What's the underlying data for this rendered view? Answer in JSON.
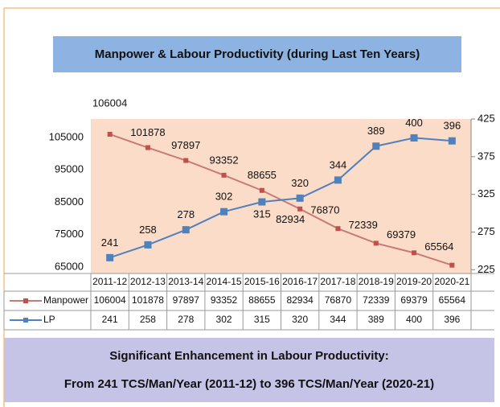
{
  "chart_data": {
    "type": "line",
    "title": "Manpower & Labour Productivity (during Last Ten Years)",
    "categories": [
      "2011-12",
      "2012-13",
      "2013-14",
      "2014-15",
      "2015-16",
      "2016-17",
      "2017-18",
      "2018-19",
      "2019-20",
      "2020-21"
    ],
    "series": [
      {
        "name": "Manpower",
        "color": "#c0504d",
        "axis": "y",
        "values": [
          106004,
          101878,
          97897,
          93352,
          88655,
          82934,
          76870,
          72339,
          69379,
          65564
        ]
      },
      {
        "name": "LP",
        "color": "#4f81bd",
        "axis": "y2",
        "values": [
          241,
          258,
          278,
          302,
          315,
          320,
          344,
          389,
          400,
          396
        ]
      }
    ],
    "ylim": [
      63000,
      110700
    ],
    "yticks": [
      65000,
      75000,
      85000,
      95000,
      105000
    ],
    "y2lim": [
      220,
      425
    ],
    "y2ticks": [
      225,
      275,
      325,
      375,
      425
    ],
    "annotations": [
      "Significant Enhancement in Labour Productivity:",
      "From 241 TCS/Man/Year (2011-12) to 396 TCS/Man/Year (2020-21)"
    ]
  }
}
